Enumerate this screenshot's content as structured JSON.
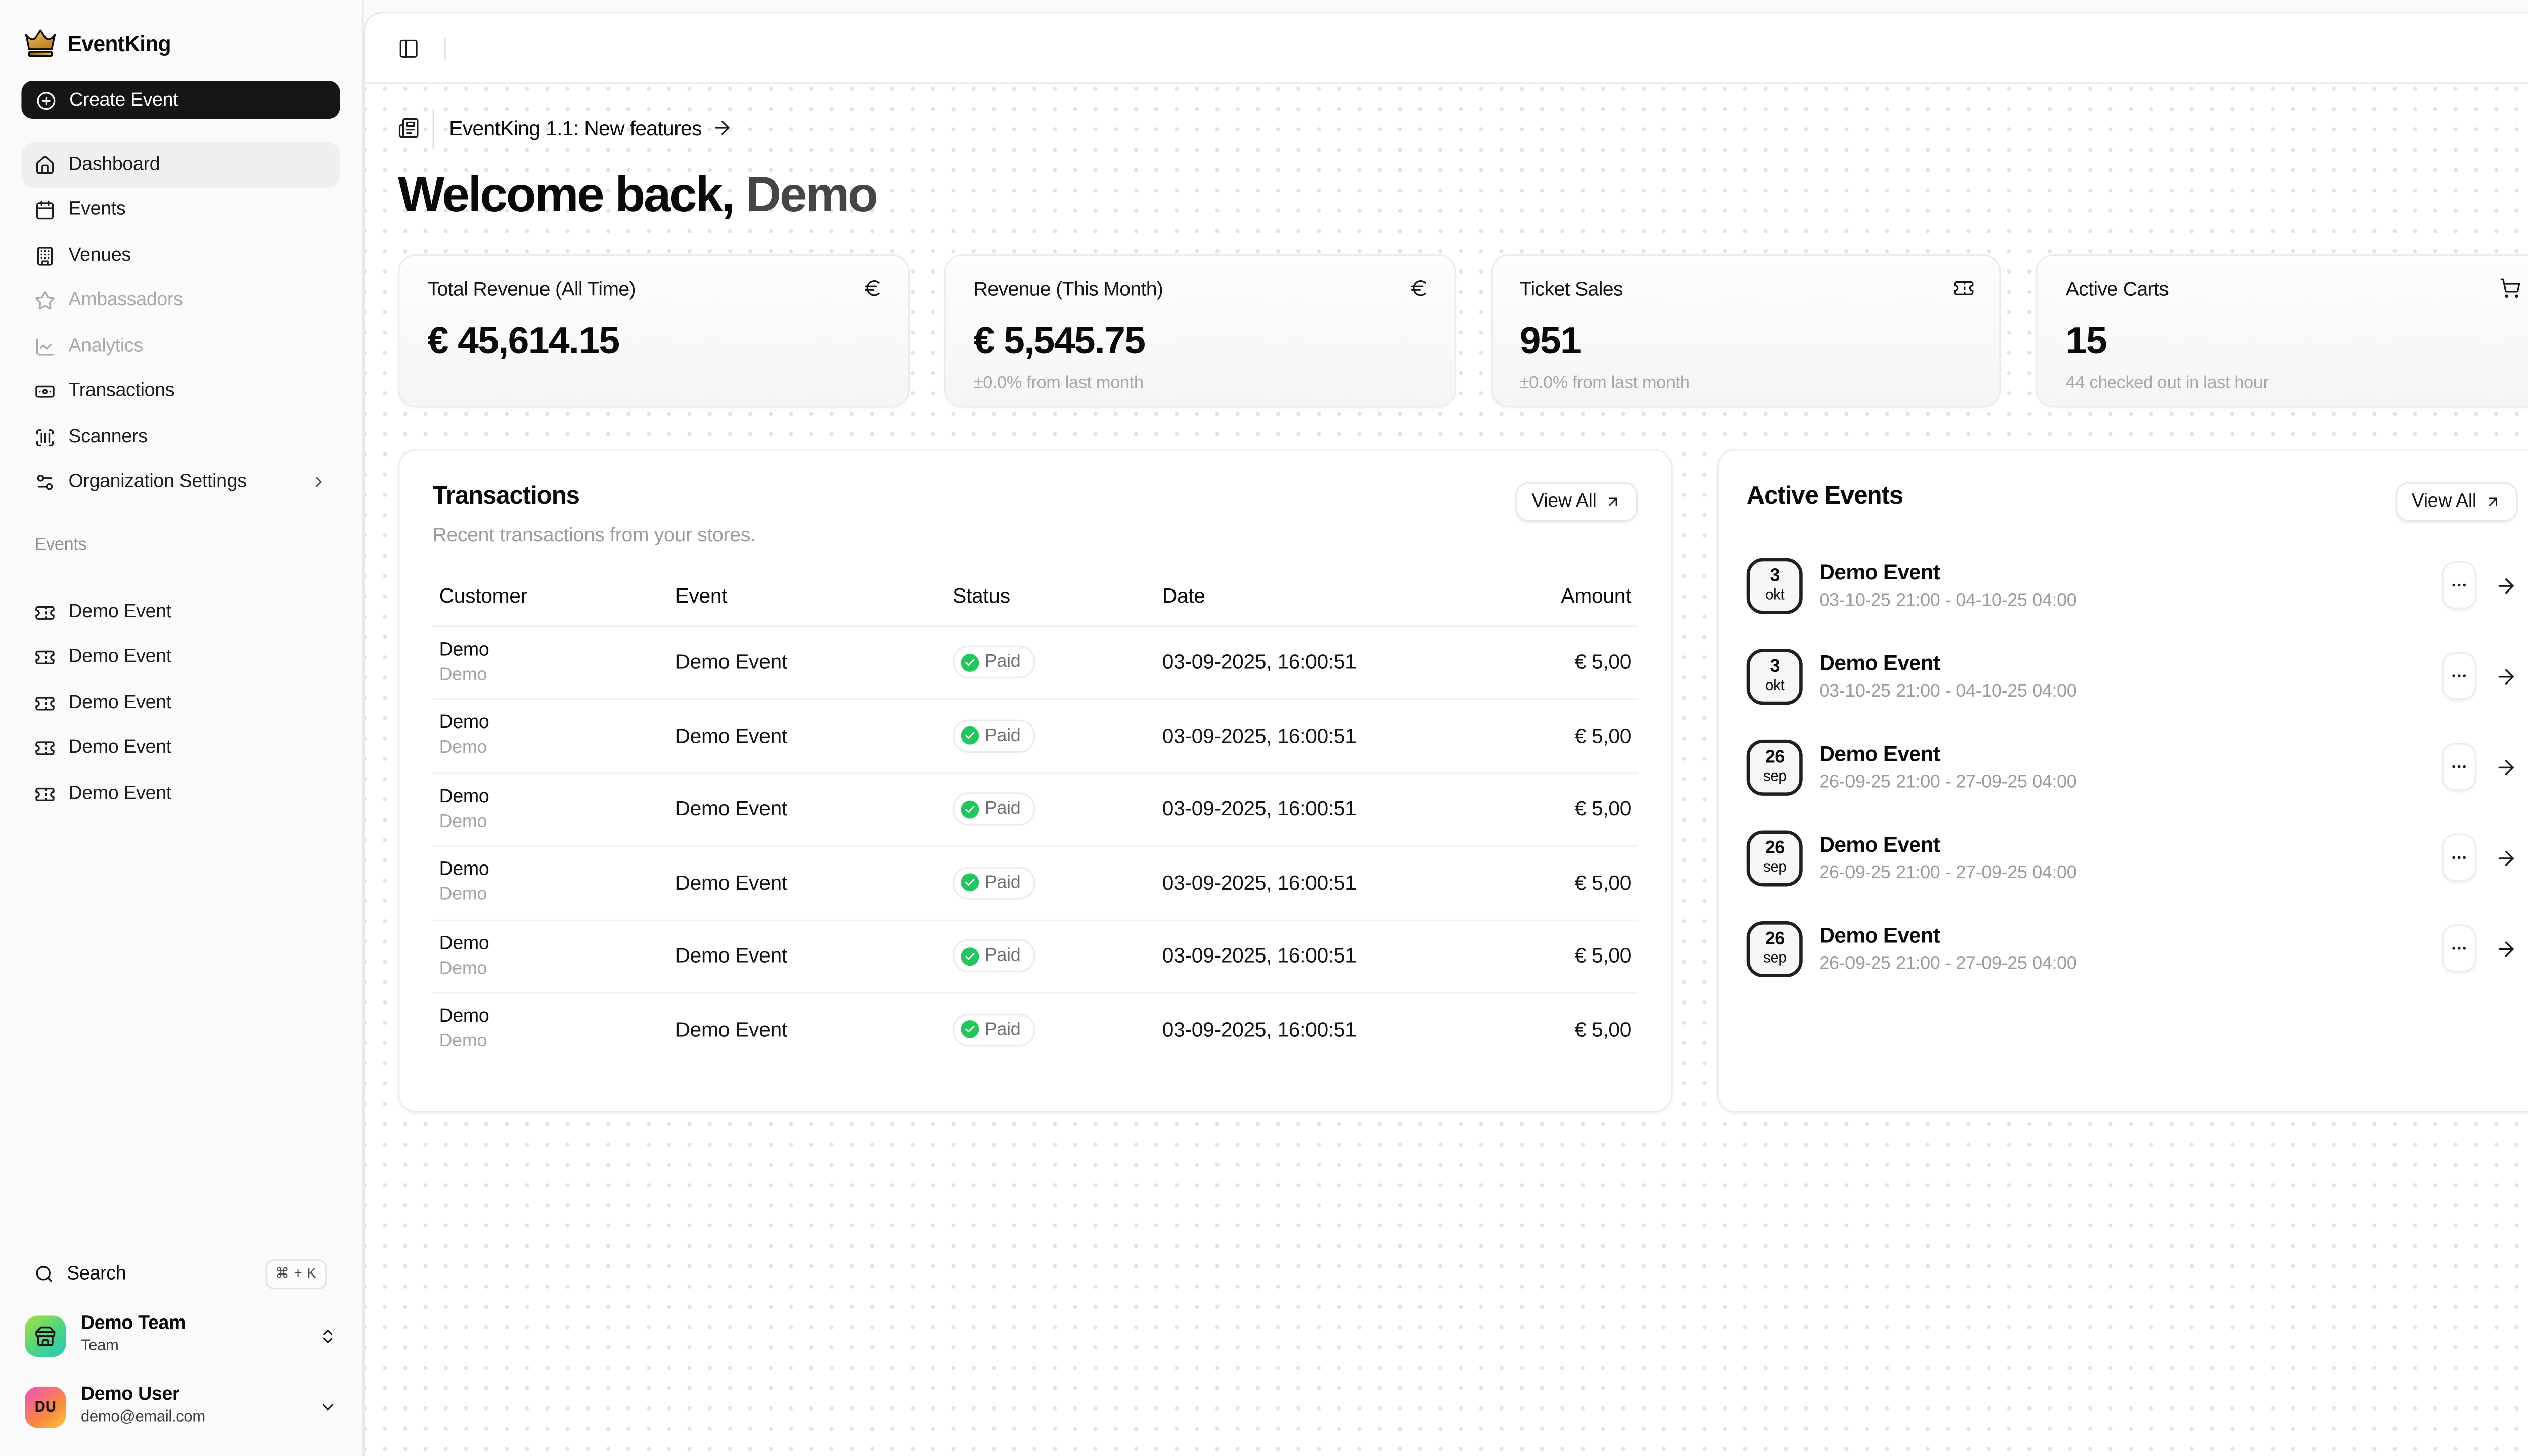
{
  "app": {
    "name": "EventKing"
  },
  "topbar": {
    "toggle_icon": "panel-left-icon"
  },
  "header": {
    "announcement": "EventKing 1.1: New features",
    "welcome_prefix": "Welcome back,",
    "welcome_name": "Demo"
  },
  "sidebar": {
    "create_event_label": "Create Event",
    "nav_items": [
      {
        "label": "Dashboard",
        "icon": "house",
        "state": "active"
      },
      {
        "label": "Events",
        "icon": "calendar",
        "state": "normal"
      },
      {
        "label": "Venues",
        "icon": "building",
        "state": "normal"
      },
      {
        "label": "Ambassadors",
        "icon": "star",
        "state": "disabled"
      },
      {
        "label": "Analytics",
        "icon": "chart-line",
        "state": "disabled"
      },
      {
        "label": "Transactions",
        "icon": "banknote",
        "state": "normal"
      },
      {
        "label": "Scanners",
        "icon": "scan-barcode",
        "state": "normal"
      },
      {
        "label": "Organization Settings",
        "icon": "settings",
        "state": "normal",
        "chevron": true
      }
    ],
    "events_section_label": "Events",
    "event_links": [
      "Demo Event",
      "Demo Event",
      "Demo Event",
      "Demo Event",
      "Demo Event"
    ],
    "search_label": "Search",
    "search_shortcut": "⌘ + K",
    "team": {
      "name": "Demo Team",
      "subtitle": "Team"
    },
    "user": {
      "name": "Demo User",
      "email": "demo@email.com",
      "initials": "DU"
    }
  },
  "stats": [
    {
      "label": "Total Revenue (All Time)",
      "icon": "euro",
      "value": "€ 45,614.15",
      "sub": ""
    },
    {
      "label": "Revenue (This Month)",
      "icon": "euro",
      "value": "€ 5,545.75",
      "sub": "±0.0% from last month"
    },
    {
      "label": "Ticket Sales",
      "icon": "ticket",
      "value": "951",
      "sub": "±0.0% from last month"
    },
    {
      "label": "Active Carts",
      "icon": "cart",
      "value": "15",
      "sub": "44 checked out in last hour"
    }
  ],
  "transactions": {
    "title": "Transactions",
    "subtitle": "Recent transactions from your stores.",
    "view_all_label": "View All",
    "columns": [
      "Customer",
      "Event",
      "Status",
      "Date",
      "Amount"
    ],
    "rows": [
      {
        "customer": "Demo",
        "customer_sub": "Demo",
        "event": "Demo Event",
        "status": "Paid",
        "date": "03-09-2025, 16:00:51",
        "amount": "€ 5,00"
      },
      {
        "customer": "Demo",
        "customer_sub": "Demo",
        "event": "Demo Event",
        "status": "Paid",
        "date": "03-09-2025, 16:00:51",
        "amount": "€ 5,00"
      },
      {
        "customer": "Demo",
        "customer_sub": "Demo",
        "event": "Demo Event",
        "status": "Paid",
        "date": "03-09-2025, 16:00:51",
        "amount": "€ 5,00"
      },
      {
        "customer": "Demo",
        "customer_sub": "Demo",
        "event": "Demo Event",
        "status": "Paid",
        "date": "03-09-2025, 16:00:51",
        "amount": "€ 5,00"
      },
      {
        "customer": "Demo",
        "customer_sub": "Demo",
        "event": "Demo Event",
        "status": "Paid",
        "date": "03-09-2025, 16:00:51",
        "amount": "€ 5,00"
      },
      {
        "customer": "Demo",
        "customer_sub": "Demo",
        "event": "Demo Event",
        "status": "Paid",
        "date": "03-09-2025, 16:00:51",
        "amount": "€ 5,00"
      }
    ]
  },
  "active_events": {
    "title": "Active Events",
    "view_all_label": "View All",
    "items": [
      {
        "day": "3",
        "month": "okt",
        "title": "Demo Event",
        "dates": "03-10-25 21:00 - 04-10-25 04:00"
      },
      {
        "day": "3",
        "month": "okt",
        "title": "Demo Event",
        "dates": "03-10-25 21:00 - 04-10-25 04:00"
      },
      {
        "day": "26",
        "month": "sep",
        "title": "Demo Event",
        "dates": "26-09-25 21:00 - 27-09-25 04:00"
      },
      {
        "day": "26",
        "month": "sep",
        "title": "Demo Event",
        "dates": "26-09-25 21:00 - 27-09-25 04:00"
      },
      {
        "day": "26",
        "month": "sep",
        "title": "Demo Event",
        "dates": "26-09-25 21:00 - 27-09-25 04:00"
      }
    ]
  },
  "colors": {
    "paid_green": "#22c55e",
    "brand_gold": "#d9a441",
    "accent_dark": "#161616"
  }
}
